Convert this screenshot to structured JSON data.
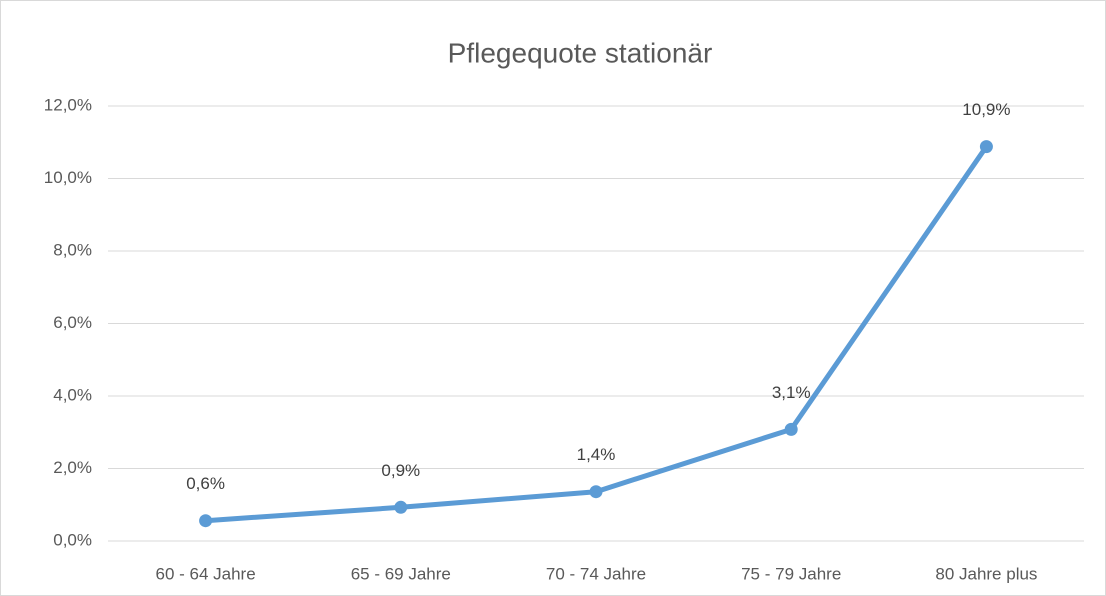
{
  "chart_data": {
    "type": "line",
    "title": "Pflegequote stationär",
    "categories": [
      "60 - 64 Jahre",
      "65 - 69 Jahre",
      "70 - 74 Jahre",
      "75 - 79 Jahre",
      "80 Jahre plus"
    ],
    "series": [
      {
        "name": "Pflegequote stationär",
        "color": "#5b9bd5",
        "values": [
          0.56,
          0.93,
          1.36,
          3.08,
          10.88
        ],
        "value_labels": [
          "0,6%",
          "0,9%",
          "1,4%",
          "3,1%",
          "10,9%"
        ]
      }
    ],
    "ylim": [
      0,
      12
    ],
    "yticks": [
      {
        "value": 0,
        "label": "0,0%"
      },
      {
        "value": 2,
        "label": "2,0%"
      },
      {
        "value": 4,
        "label": "4,0%"
      },
      {
        "value": 6,
        "label": "6,0%"
      },
      {
        "value": 8,
        "label": "8,0%"
      },
      {
        "value": 10,
        "label": "10,0%"
      },
      {
        "value": 12,
        "label": "12,0%"
      }
    ],
    "grid": true
  }
}
